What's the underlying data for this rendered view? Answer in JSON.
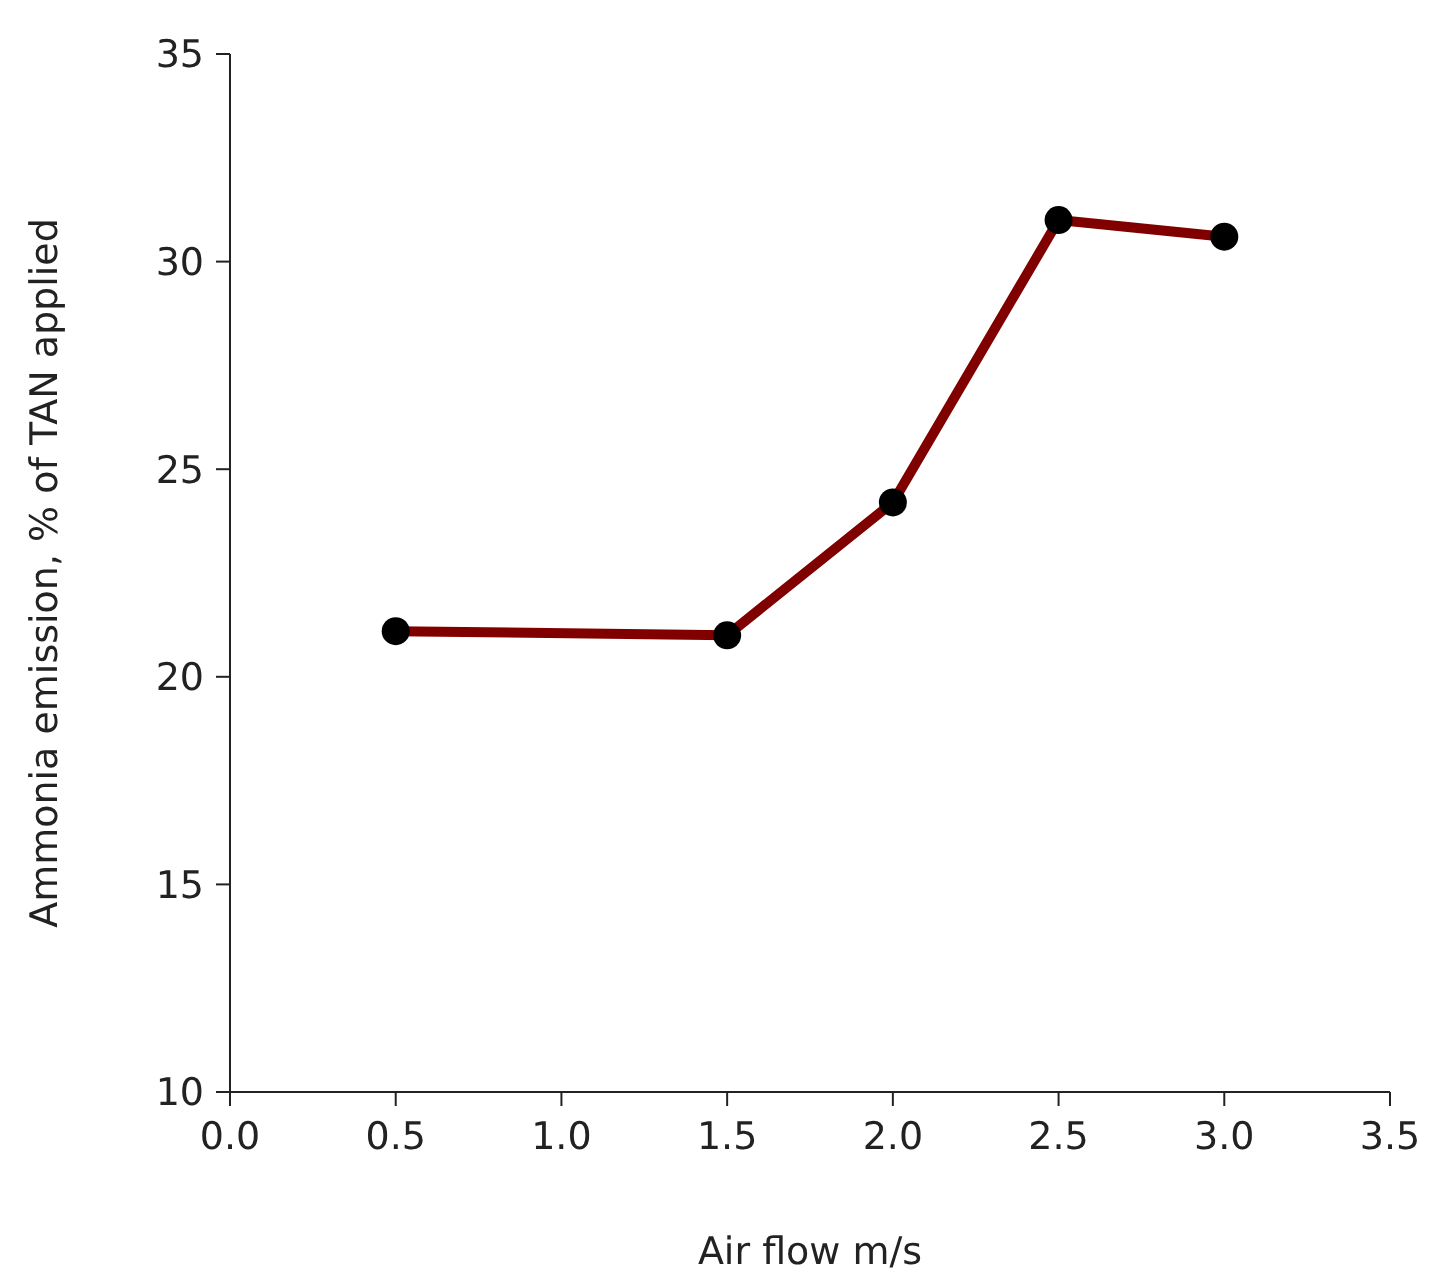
{
  "chart_data": {
    "type": "line",
    "xlabel": "Air flow m/s",
    "ylabel": "Ammonia emission, % of TAN applied",
    "x": [
      0.5,
      1.5,
      2.0,
      2.5,
      3.0
    ],
    "series": [
      {
        "color": "#800000",
        "values": [
          21.1,
          21.0,
          24.2,
          31.0,
          30.6
        ]
      }
    ],
    "xlim": [
      0,
      3.5
    ],
    "xticks": [
      {
        "value": 0,
        "label": "0.0"
      },
      {
        "value": 0.5,
        "label": "0.5"
      },
      {
        "value": 1,
        "label": "1.0"
      },
      {
        "value": 1.5,
        "label": "1.5"
      },
      {
        "value": 2,
        "label": "2.0"
      },
      {
        "value": 2.5,
        "label": "2.5"
      },
      {
        "value": 3,
        "label": "3.0"
      },
      {
        "value": 3.5,
        "label": "3.5"
      }
    ],
    "ylim": [
      10,
      35
    ],
    "yticks": [
      10,
      15,
      20,
      25,
      30,
      35
    ],
    "grid": false,
    "legend": false,
    "marker": "circle",
    "line_style": "solid"
  }
}
